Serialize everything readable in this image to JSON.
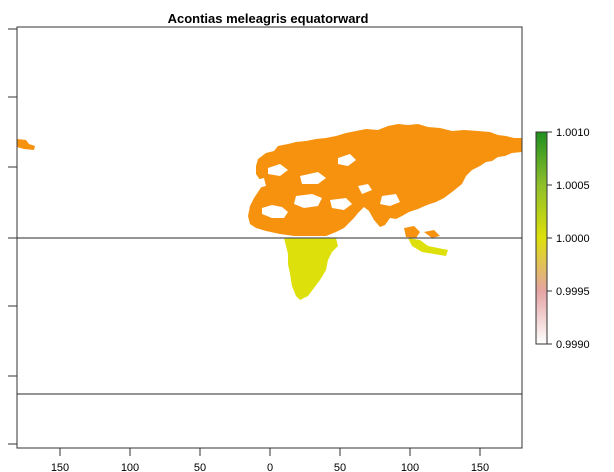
{
  "title": "Acontias meleagris equatorward",
  "axes": {
    "x_tick_labels": [
      "150",
      "100",
      "50",
      "0",
      "50",
      "100",
      "150"
    ],
    "x_tick_values": [
      -150,
      -100,
      -50,
      0,
      50,
      100,
      150
    ]
  },
  "legend": {
    "labels": [
      "1.0010",
      "1.0005",
      "1.0000",
      "0.9995",
      "0.9990"
    ],
    "min": 0.999,
    "max": 1.001
  },
  "colors": {
    "north_region": "#f7920f",
    "south_region": "#dde00b",
    "reference_line": "#555555",
    "frame": "#333333"
  }
}
